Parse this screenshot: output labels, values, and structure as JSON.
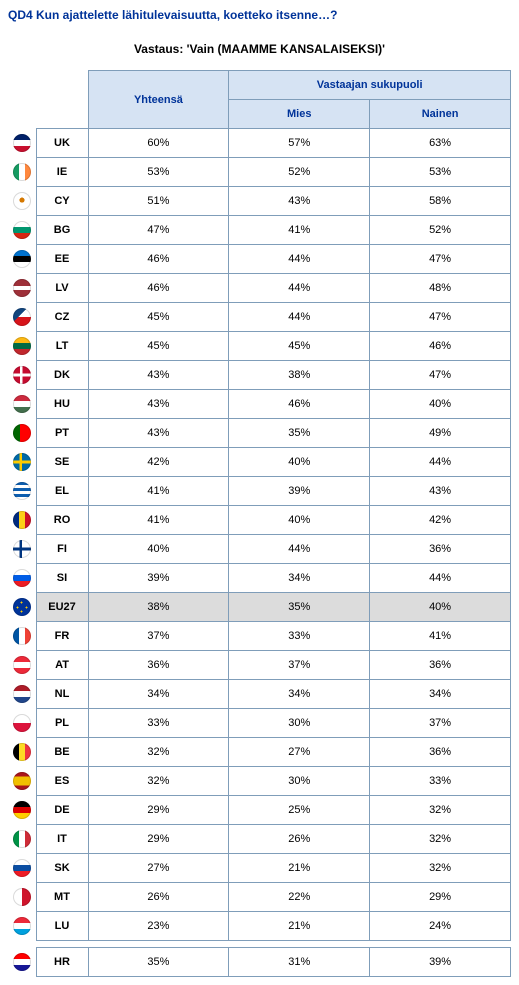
{
  "question": "QD4 Kun ajattelette lähitulevaisuutta, koetteko itsenne…?",
  "answer_label": "Vastaus: 'Vain (MAAMME KANSALAISEKSI)'",
  "headers": {
    "total": "Yhteensä",
    "group": "Vastaajan sukupuoli",
    "col1": "Mies",
    "col2": "Nainen"
  },
  "rows": [
    {
      "code": "UK",
      "flag": "linear-gradient(180deg,#012169 33%,#ffffff 33%,#ffffff 66%,#c8102e 66%)",
      "total": "60%",
      "c1": "57%",
      "c2": "63%",
      "hl": false
    },
    {
      "code": "IE",
      "flag": "linear-gradient(90deg,#169b62 33%,#ffffff 33%,#ffffff 66%,#ff883e 66%)",
      "total": "53%",
      "c1": "52%",
      "c2": "53%",
      "hl": false
    },
    {
      "code": "CY",
      "flag": "radial-gradient(circle at 50% 45%,#d57800 18%,#ffffff 20%)",
      "total": "51%",
      "c1": "43%",
      "c2": "58%",
      "hl": false
    },
    {
      "code": "BG",
      "flag": "linear-gradient(180deg,#ffffff 33%,#00966e 33%,#00966e 66%,#d62612 66%)",
      "total": "47%",
      "c1": "41%",
      "c2": "52%",
      "hl": false
    },
    {
      "code": "EE",
      "flag": "linear-gradient(180deg,#0072ce 33%,#000000 33%,#000000 66%,#ffffff 66%)",
      "total": "46%",
      "c1": "44%",
      "c2": "47%",
      "hl": false
    },
    {
      "code": "LV",
      "flag": "linear-gradient(180deg,#9e3039 40%,#ffffff 40%,#ffffff 60%,#9e3039 60%)",
      "total": "46%",
      "c1": "44%",
      "c2": "48%",
      "hl": false
    },
    {
      "code": "CZ",
      "flag": "linear-gradient(135deg,#11457e 40%,transparent 40%),linear-gradient(180deg,#ffffff 50%,#d7141a 50%)",
      "total": "45%",
      "c1": "44%",
      "c2": "47%",
      "hl": false
    },
    {
      "code": "LT",
      "flag": "linear-gradient(180deg,#fdb913 33%,#006a44 33%,#006a44 66%,#c1272d 66%)",
      "total": "45%",
      "c1": "45%",
      "c2": "46%",
      "hl": false
    },
    {
      "code": "DK",
      "flag": "linear-gradient(90deg,transparent 38%,#ffffff 38%,#ffffff 52%,transparent 52%),linear-gradient(180deg,transparent 42%,#ffffff 42%,#ffffff 58%,transparent 58%),#c60c30",
      "total": "43%",
      "c1": "38%",
      "c2": "47%",
      "hl": false
    },
    {
      "code": "HU",
      "flag": "linear-gradient(180deg,#cd2a3e 33%,#ffffff 33%,#ffffff 66%,#436f4d 66%)",
      "total": "43%",
      "c1": "46%",
      "c2": "40%",
      "hl": false
    },
    {
      "code": "PT",
      "flag": "linear-gradient(90deg,#006600 40%,#ff0000 40%)",
      "total": "43%",
      "c1": "35%",
      "c2": "49%",
      "hl": false
    },
    {
      "code": "SE",
      "flag": "linear-gradient(90deg,transparent 35%,#fecc00 35%,#fecc00 50%,transparent 50%),linear-gradient(180deg,transparent 42%,#fecc00 42%,#fecc00 58%,transparent 58%),#006aa7",
      "total": "42%",
      "c1": "40%",
      "c2": "44%",
      "hl": false
    },
    {
      "code": "EL",
      "flag": "repeating-linear-gradient(180deg,#0d5eaf 0 3px,#ffffff 3px 6px)",
      "total": "41%",
      "c1": "39%",
      "c2": "43%",
      "hl": false
    },
    {
      "code": "RO",
      "flag": "linear-gradient(90deg,#002b7f 33%,#fcd116 33%,#fcd116 66%,#ce1126 66%)",
      "total": "41%",
      "c1": "40%",
      "c2": "42%",
      "hl": false
    },
    {
      "code": "FI",
      "flag": "linear-gradient(90deg,transparent 35%,#003580 35%,#003580 50%,transparent 50%),linear-gradient(180deg,transparent 42%,#003580 42%,#003580 58%,transparent 58%),#ffffff",
      "total": "40%",
      "c1": "44%",
      "c2": "36%",
      "hl": false
    },
    {
      "code": "SI",
      "flag": "linear-gradient(180deg,#ffffff 33%,#005ce5 33%,#005ce5 66%,#ed1c24 66%)",
      "total": "39%",
      "c1": "34%",
      "c2": "44%",
      "hl": false
    },
    {
      "code": "EU27",
      "flag": "radial-gradient(circle,#ffcc00 1px,transparent 1px) 50% 20%/3px 3px no-repeat,radial-gradient(circle,#ffcc00 1px,transparent 1px) 50% 80%/3px 3px no-repeat,radial-gradient(circle,#ffcc00 1px,transparent 1px) 20% 50%/3px 3px no-repeat,radial-gradient(circle,#ffcc00 1px,transparent 1px) 80% 50%/3px 3px no-repeat,#003399",
      "total": "38%",
      "c1": "35%",
      "c2": "40%",
      "hl": true
    },
    {
      "code": "FR",
      "flag": "linear-gradient(90deg,#0055a4 33%,#ffffff 33%,#ffffff 66%,#ef4135 66%)",
      "total": "37%",
      "c1": "33%",
      "c2": "41%",
      "hl": false
    },
    {
      "code": "AT",
      "flag": "linear-gradient(180deg,#ed2939 33%,#ffffff 33%,#ffffff 66%,#ed2939 66%)",
      "total": "36%",
      "c1": "37%",
      "c2": "36%",
      "hl": false
    },
    {
      "code": "NL",
      "flag": "linear-gradient(180deg,#ae1c28 33%,#ffffff 33%,#ffffff 66%,#21468b 66%)",
      "total": "34%",
      "c1": "34%",
      "c2": "34%",
      "hl": false
    },
    {
      "code": "PL",
      "flag": "linear-gradient(180deg,#ffffff 50%,#dc143c 50%)",
      "total": "33%",
      "c1": "30%",
      "c2": "37%",
      "hl": false
    },
    {
      "code": "BE",
      "flag": "linear-gradient(90deg,#000000 33%,#fdda24 33%,#fdda24 66%,#ef3340 66%)",
      "total": "32%",
      "c1": "27%",
      "c2": "36%",
      "hl": false
    },
    {
      "code": "ES",
      "flag": "linear-gradient(180deg,#aa151b 25%,#f1bf00 25%,#f1bf00 75%,#aa151b 75%)",
      "total": "32%",
      "c1": "30%",
      "c2": "33%",
      "hl": false
    },
    {
      "code": "DE",
      "flag": "linear-gradient(180deg,#000000 33%,#dd0000 33%,#dd0000 66%,#ffce00 66%)",
      "total": "29%",
      "c1": "25%",
      "c2": "32%",
      "hl": false
    },
    {
      "code": "IT",
      "flag": "linear-gradient(90deg,#009246 33%,#ffffff 33%,#ffffff 66%,#ce2b37 66%)",
      "total": "29%",
      "c1": "26%",
      "c2": "32%",
      "hl": false
    },
    {
      "code": "SK",
      "flag": "linear-gradient(180deg,#ffffff 33%,#0b4ea2 33%,#0b4ea2 66%,#ee1c25 66%)",
      "total": "27%",
      "c1": "21%",
      "c2": "32%",
      "hl": false
    },
    {
      "code": "MT",
      "flag": "linear-gradient(90deg,#ffffff 50%,#cf142b 50%)",
      "total": "26%",
      "c1": "22%",
      "c2": "29%",
      "hl": false
    },
    {
      "code": "LU",
      "flag": "linear-gradient(180deg,#ed2939 33%,#ffffff 33%,#ffffff 66%,#00a1de 66%)",
      "total": "23%",
      "c1": "21%",
      "c2": "24%",
      "hl": false
    }
  ],
  "extra_rows": [
    {
      "code": "HR",
      "flag": "linear-gradient(180deg,#ff0000 33%,#ffffff 33%,#ffffff 66%,#171796 66%)",
      "total": "35%",
      "c1": "31%",
      "c2": "39%",
      "hl": false
    }
  ]
}
